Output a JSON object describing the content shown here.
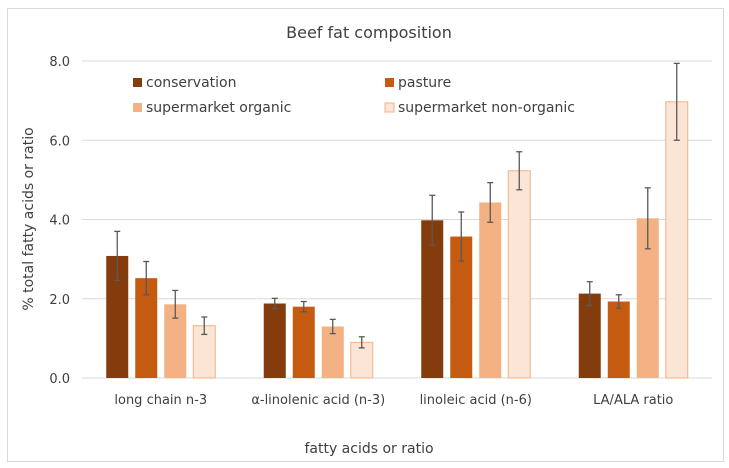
{
  "chart_data": {
    "type": "bar",
    "title": "Beef fat composition",
    "xlabel": "fatty acids or ratio",
    "ylabel": "% total fatty acids or ratio",
    "ylim": [
      0,
      8
    ],
    "yticks": [
      "0.0",
      "2.0",
      "4.0",
      "6.0",
      "8.0"
    ],
    "grid": "horizontal",
    "legend_position": "top, inside plot",
    "error_bars": true,
    "categories": [
      "long chain n-3",
      "α-linolenic acid (n-3)",
      "linoleic acid (n-6)",
      "LA/ALA ratio"
    ],
    "series": [
      {
        "name": "conservation",
        "color": "#843c0c",
        "values": [
          3.08,
          1.88,
          3.98,
          2.13
        ],
        "errors": [
          0.62,
          0.13,
          0.63,
          0.3
        ]
      },
      {
        "name": "pasture",
        "color": "#c55a11",
        "values": [
          2.52,
          1.8,
          3.57,
          1.93
        ],
        "errors": [
          0.42,
          0.13,
          0.62,
          0.17
        ]
      },
      {
        "name": "supermarket organic",
        "color": "#f4b183",
        "values": [
          1.86,
          1.3,
          4.43,
          4.03
        ],
        "errors": [
          0.35,
          0.18,
          0.5,
          0.77
        ]
      },
      {
        "name": "supermarket non-organic",
        "color": "#fbe5d6",
        "stroke": "#f4b183",
        "values": [
          1.32,
          0.9,
          5.23,
          6.97
        ],
        "errors": [
          0.22,
          0.14,
          0.48,
          0.97
        ]
      }
    ]
  }
}
